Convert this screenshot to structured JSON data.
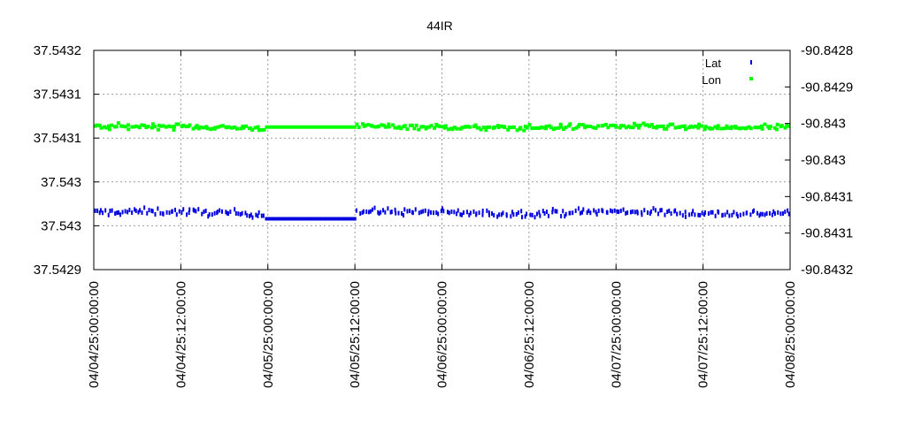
{
  "chart_data": {
    "type": "scatter",
    "title": "44IR",
    "grid": true,
    "legend_position": "top-right",
    "x_axis": {
      "start": "2004-04-25T00:00:00",
      "end": "2004-08-25T00:00:00",
      "tick_labels": [
        "04/04/25:00:00:00",
        "04/04/25:12:00:00",
        "04/05/25:00:00:00",
        "04/05/25:12:00:00",
        "04/06/25:00:00:00",
        "04/06/25:12:00:00",
        "04/07/25:00:00:00",
        "04/07/25:12:00:00",
        "04/08/25:00:00:00"
      ]
    },
    "y_axis_left": {
      "series": "Lat",
      "range": [
        37.54293,
        37.54318
      ],
      "tick_labels": [
        "37.5432",
        "37.5431",
        "37.5431",
        "37.543",
        "37.543",
        "37.5429"
      ]
    },
    "y_axis_right": {
      "series": "Lon",
      "range": [
        -90.8432,
        -90.8428
      ],
      "tick_labels": [
        "-90.8428",
        "-90.8429",
        "-90.843",
        "-90.843",
        "-90.8431",
        "-90.8431",
        "-90.8432"
      ]
    },
    "series": [
      {
        "name": "Lat",
        "axis": "left",
        "color": "#0000e0",
        "marker": "vertical-dash",
        "baseline": 37.542995,
        "noise": 2e-06,
        "gap_value": 37.542988,
        "segments": [
          {
            "from": "2004-04-25T00:00:00",
            "to": "2004-05-25T00:00:00",
            "mode": "scatter"
          },
          {
            "from": "2004-05-25T00:00:00",
            "to": "2004-06-10T00:00:00",
            "mode": "flat"
          },
          {
            "from": "2004-06-10T00:00:00",
            "to": "2004-08-25T00:00:00",
            "mode": "scatter"
          }
        ]
      },
      {
        "name": "Lon",
        "axis": "right",
        "color": "#00ff00",
        "marker": "square",
        "baseline": -90.84294,
        "noise": 2.5e-06,
        "gap_value": -90.84294,
        "segments": [
          {
            "from": "2004-04-25T00:00:00",
            "to": "2004-05-25T00:00:00",
            "mode": "scatter"
          },
          {
            "from": "2004-05-25T00:00:00",
            "to": "2004-06-10T00:00:00",
            "mode": "flat"
          },
          {
            "from": "2004-06-10T00:00:00",
            "to": "2004-08-25T00:00:00",
            "mode": "scatter"
          }
        ]
      }
    ],
    "point_count_per_series": 320
  }
}
